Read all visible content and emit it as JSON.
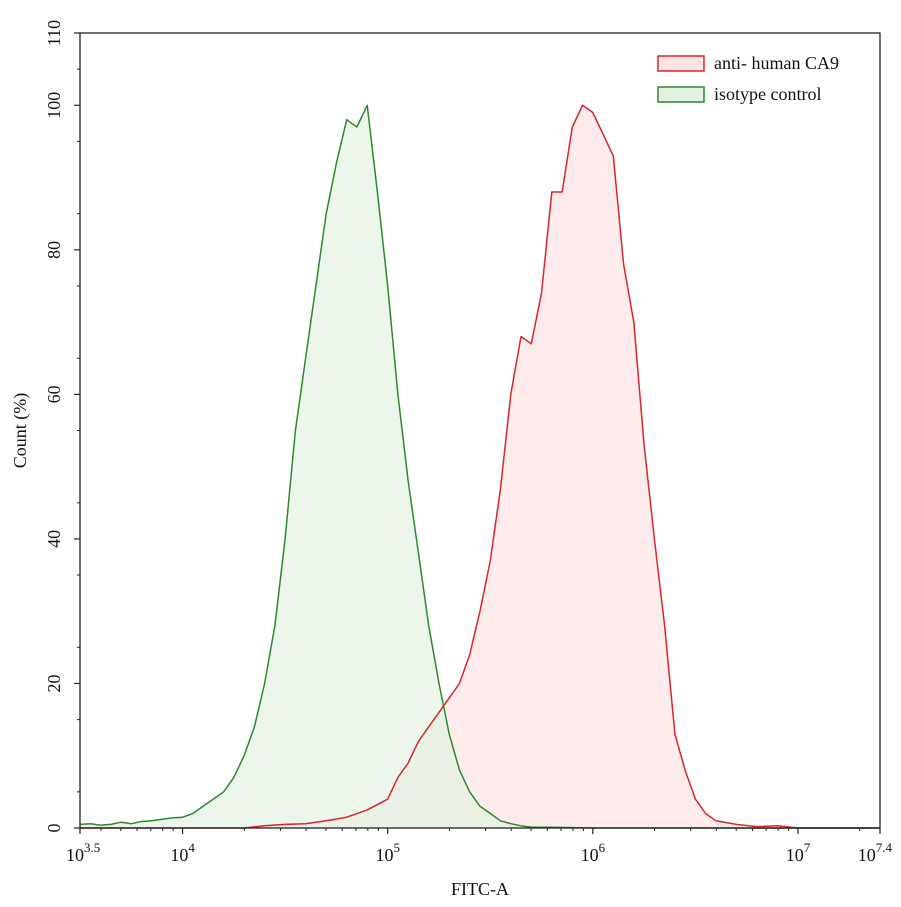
{
  "chart_data": {
    "type": "area",
    "xlabel": "FITC-A",
    "ylabel": "Count (%)",
    "x_scale": "log10",
    "xlim": [
      3162.28,
      25118864
    ],
    "ylim": [
      0,
      110
    ],
    "grid": false,
    "legend_position": "top-right",
    "x_ticks": [
      {
        "base": "10",
        "exp": "3.5",
        "value": 3162.28
      },
      {
        "base": "10",
        "exp": "4",
        "value": 10000
      },
      {
        "base": "10",
        "exp": "5",
        "value": 100000
      },
      {
        "base": "10",
        "exp": "6",
        "value": 1000000
      },
      {
        "base": "10",
        "exp": "7",
        "value": 10000000
      },
      {
        "base": "10",
        "exp": "7.4",
        "value": 25118864
      }
    ],
    "y_ticks": [
      "0",
      "20",
      "40",
      "60",
      "80",
      "100",
      "110"
    ],
    "series": [
      {
        "name": "anti- human CA9",
        "stroke": "#d8262b",
        "fill": "#fde3e4",
        "x": [
          3162,
          15849,
          19953,
          25119,
          31623,
          39811,
          50119,
          63096,
          79433,
          100000,
          112202,
          125893,
          141254,
          158489,
          177828,
          199526,
          223872,
          251189,
          281838,
          316228,
          354813,
          398107,
          446684,
          501187,
          562341,
          630957,
          707946,
          794328,
          891251,
          1000000,
          1122018,
          1258925,
          1412538,
          1584893,
          1778279,
          1995262,
          2238721,
          2511886,
          2818383,
          3162278,
          3548134,
          3981072,
          5011872,
          6309573,
          7943282,
          10000000,
          25118864
        ],
        "y": [
          0,
          0,
          0,
          0.3,
          0.5,
          0.6,
          1,
          1.5,
          2.5,
          4,
          7,
          9,
          12,
          14,
          16,
          18,
          20,
          24,
          30,
          37,
          47,
          60,
          68,
          67,
          74,
          88,
          88,
          97,
          100,
          99,
          96,
          93,
          78,
          70,
          53,
          40,
          28,
          13,
          8,
          4,
          2,
          1,
          0.5,
          0.2,
          0.3,
          0,
          0
        ]
      },
      {
        "name": "isotype  control",
        "stroke": "#2c8a2c",
        "fill": "#e5f3e3",
        "x": [
          3162,
          3548,
          3981,
          4467,
          5012,
          5623,
          6310,
          7079,
          7943,
          8913,
          10000,
          11220,
          12589,
          14125,
          15849,
          17783,
          19953,
          22387,
          25119,
          28184,
          31623,
          35481,
          39811,
          44668,
          50119,
          56234,
          63096,
          70795,
          79433,
          89125,
          100000,
          112202,
          125893,
          141254,
          158489,
          177828,
          199526,
          223872,
          251189,
          281838,
          316228,
          354813,
          398107,
          446684,
          501187,
          630957,
          1000000,
          25118864
        ],
        "y": [
          0.5,
          0.6,
          0.4,
          0.5,
          0.8,
          0.6,
          0.9,
          1,
          1.2,
          1.4,
          1.5,
          2,
          3,
          4,
          5,
          7,
          10,
          14,
          20,
          28,
          40,
          55,
          65,
          75,
          85,
          92,
          98,
          97,
          100,
          88,
          75,
          60,
          48,
          38,
          28,
          20,
          13,
          8,
          5,
          3,
          2,
          1,
          0.6,
          0.3,
          0.1,
          0.1,
          0,
          0
        ]
      }
    ]
  }
}
